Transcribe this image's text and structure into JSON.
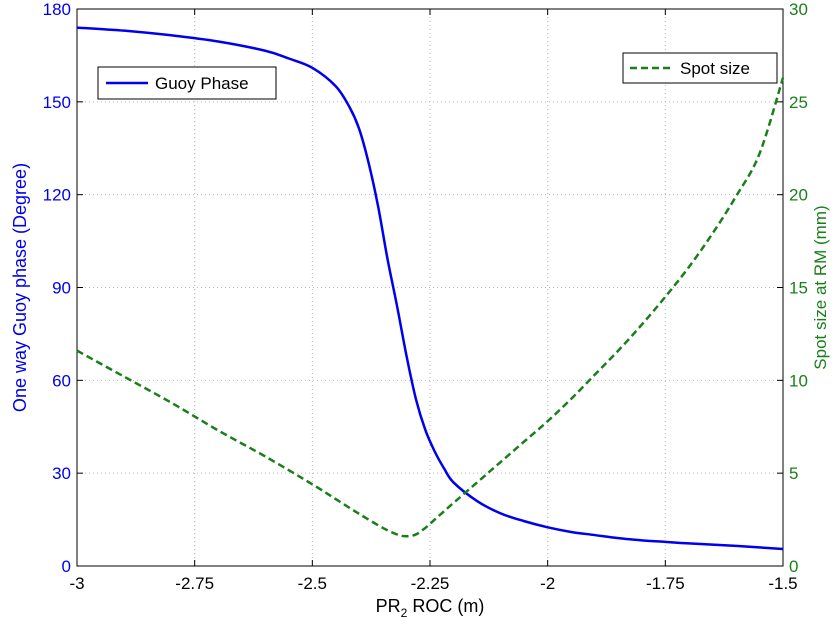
{
  "chart_data": {
    "type": "line",
    "xlabel": "PR₂ ROC (m)",
    "ylabel_left": "One way Guoy phase (Degree)",
    "ylabel_right": "Spot size at RM (mm)",
    "xlim": [
      -3,
      -1.5
    ],
    "ylim_left": [
      0,
      180
    ],
    "ylim_right": [
      0,
      30
    ],
    "x_ticks": [
      -3,
      -2.75,
      -2.5,
      -2.25,
      -2,
      -1.75,
      -1.5
    ],
    "x_tick_labels": [
      "-3",
      "-2.75",
      "-2.5",
      "-2.25",
      "-2",
      "-1.75",
      "-1.5"
    ],
    "y_left_ticks": [
      0,
      30,
      60,
      90,
      120,
      150,
      180
    ],
    "y_left_tick_labels": [
      "0",
      "30",
      "60",
      "90",
      "120",
      "150",
      "180"
    ],
    "y_right_ticks": [
      0,
      5,
      10,
      15,
      20,
      25,
      30
    ],
    "y_right_tick_labels": [
      "0",
      "5",
      "10",
      "15",
      "20",
      "25",
      "30"
    ],
    "grid": true,
    "series": [
      {
        "name": "Guoy Phase",
        "axis": "left",
        "color": "#0000ee",
        "style": "solid",
        "legend_position": "top-left",
        "x": [
          -3.0,
          -2.9,
          -2.8,
          -2.7,
          -2.6,
          -2.55,
          -2.5,
          -2.45,
          -2.42,
          -2.4,
          -2.38,
          -2.36,
          -2.34,
          -2.32,
          -2.3,
          -2.28,
          -2.26,
          -2.24,
          -2.22,
          -2.2,
          -2.15,
          -2.1,
          -2.05,
          -2.0,
          -1.95,
          -1.9,
          -1.85,
          -1.8,
          -1.75,
          -1.7,
          -1.6,
          -1.5
        ],
        "y": [
          174,
          173,
          171.5,
          169.5,
          166.5,
          164,
          161,
          155,
          148,
          141,
          130,
          116,
          99,
          84,
          68,
          54,
          44,
          37,
          31.5,
          27,
          21,
          17,
          14.5,
          12.5,
          11,
          10,
          9,
          8.3,
          7.8,
          7.3,
          6.5,
          5.5
        ]
      },
      {
        "name": "Spot size",
        "axis": "right",
        "color": "#1a7f1a",
        "style": "dashed",
        "legend_position": "top-right",
        "x": [
          -3.0,
          -2.9,
          -2.8,
          -2.7,
          -2.6,
          -2.5,
          -2.45,
          -2.4,
          -2.35,
          -2.32,
          -2.3,
          -2.28,
          -2.26,
          -2.24,
          -2.22,
          -2.2,
          -2.15,
          -2.1,
          -2.05,
          -2.0,
          -1.95,
          -1.9,
          -1.85,
          -1.8,
          -1.75,
          -1.7,
          -1.65,
          -1.6,
          -1.55,
          -1.5
        ],
        "y": [
          11.6,
          10.2,
          8.8,
          7.3,
          5.9,
          4.4,
          3.6,
          2.8,
          2.05,
          1.7,
          1.6,
          1.7,
          2.05,
          2.5,
          2.95,
          3.4,
          4.5,
          5.6,
          6.7,
          7.8,
          9.0,
          10.3,
          11.6,
          13.0,
          14.5,
          16.1,
          17.9,
          19.9,
          22.2,
          26.3
        ]
      }
    ]
  }
}
